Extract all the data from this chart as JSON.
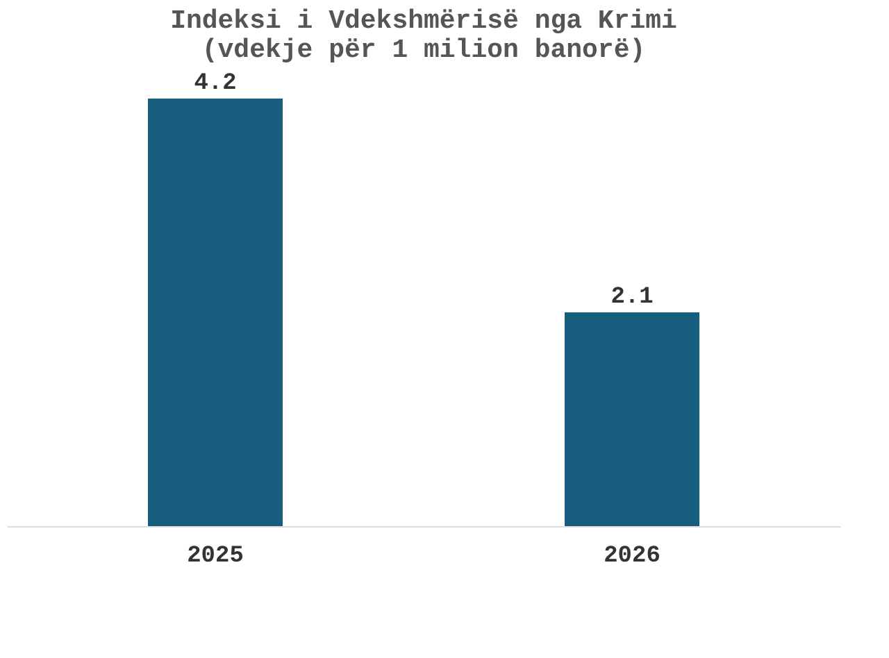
{
  "chart_data": {
    "type": "bar",
    "title": [
      "Indeksi i Vdekshmërisë nga Krimi",
      "(vdekje për 1 milion banorë)"
    ],
    "categories": [
      "2025",
      "2026"
    ],
    "values": [
      4.2,
      2.1
    ],
    "color": "#175e7e",
    "data_labels": true,
    "grid": false
  }
}
